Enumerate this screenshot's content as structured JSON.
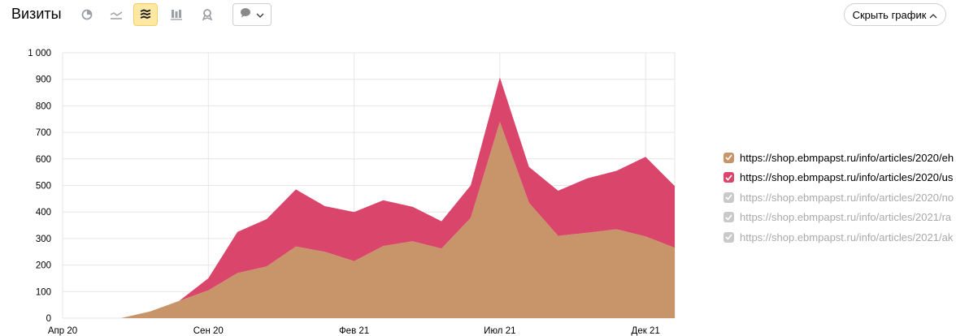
{
  "header": {
    "title": "Визиты",
    "hide_chart_label": "Скрыть график",
    "tools": [
      "pie-chart-icon",
      "line-chart-icon",
      "stacked-area-icon",
      "bar-chart-icon",
      "map-icon"
    ],
    "active_tool": "stacked-area-icon"
  },
  "colors": {
    "series1": "#c8956a",
    "series2": "#d9456b",
    "disabled": "#c9c9c9"
  },
  "legend": [
    {
      "label": "https://shop.ebmpapst.ru/info/articles/2020/eh",
      "color": "#c8956a",
      "checked": true
    },
    {
      "label": "https://shop.ebmpapst.ru/info/articles/2020/us",
      "color": "#d9456b",
      "checked": true
    },
    {
      "label": "https://shop.ebmpapst.ru/info/articles/2020/no",
      "color": "#c9c9c9",
      "checked": false
    },
    {
      "label": "https://shop.ebmpapst.ru/info/articles/2021/ra",
      "color": "#c9c9c9",
      "checked": false
    },
    {
      "label": "https://shop.ebmpapst.ru/info/articles/2021/ak",
      "color": "#c9c9c9",
      "checked": false
    }
  ],
  "chart_data": {
    "type": "area",
    "stacked": true,
    "x": [
      "2020-04",
      "2020-05",
      "2020-06",
      "2020-07",
      "2020-08",
      "2020-09",
      "2020-10",
      "2020-11",
      "2020-12",
      "2021-01",
      "2021-02",
      "2021-03",
      "2021-04",
      "2021-05",
      "2021-06",
      "2021-07",
      "2021-08",
      "2021-09",
      "2021-10",
      "2021-11",
      "2021-12",
      "2022-01"
    ],
    "x_tick_labels": [
      {
        "label": "Апр 20",
        "x": "2020-04"
      },
      {
        "label": "Сен 20",
        "x": "2020-09"
      },
      {
        "label": "Фев 21",
        "x": "2021-02"
      },
      {
        "label": "Июл 21",
        "x": "2021-07"
      },
      {
        "label": "Дек 21",
        "x": "2021-12"
      }
    ],
    "series": [
      {
        "name": "https://shop.ebmpapst.ru/info/articles/2020/eh",
        "color": "#c8956a",
        "values": [
          0,
          0,
          0,
          25,
          65,
          105,
          170,
          195,
          270,
          250,
          215,
          272,
          290,
          262,
          378,
          740,
          435,
          310,
          322,
          335,
          308,
          265
        ]
      },
      {
        "name": "https://shop.ebmpapst.ru/info/articles/2020/us",
        "color": "#d9456b",
        "values": [
          0,
          0,
          0,
          0,
          0,
          45,
          155,
          178,
          215,
          172,
          185,
          172,
          130,
          103,
          122,
          167,
          135,
          170,
          205,
          220,
          300,
          233
        ]
      }
    ],
    "y_ticks": [
      {
        "value": 0,
        "label": "0"
      },
      {
        "value": 100,
        "label": "100"
      },
      {
        "value": 200,
        "label": "200"
      },
      {
        "value": 300,
        "label": "300"
      },
      {
        "value": 400,
        "label": "400"
      },
      {
        "value": 500,
        "label": "500"
      },
      {
        "value": 600,
        "label": "600"
      },
      {
        "value": 700,
        "label": "700"
      },
      {
        "value": 800,
        "label": "800"
      },
      {
        "value": 900,
        "label": "900"
      },
      {
        "value": 1000,
        "label": "1 000"
      }
    ],
    "ylim": [
      0,
      1000
    ],
    "grid": true
  }
}
